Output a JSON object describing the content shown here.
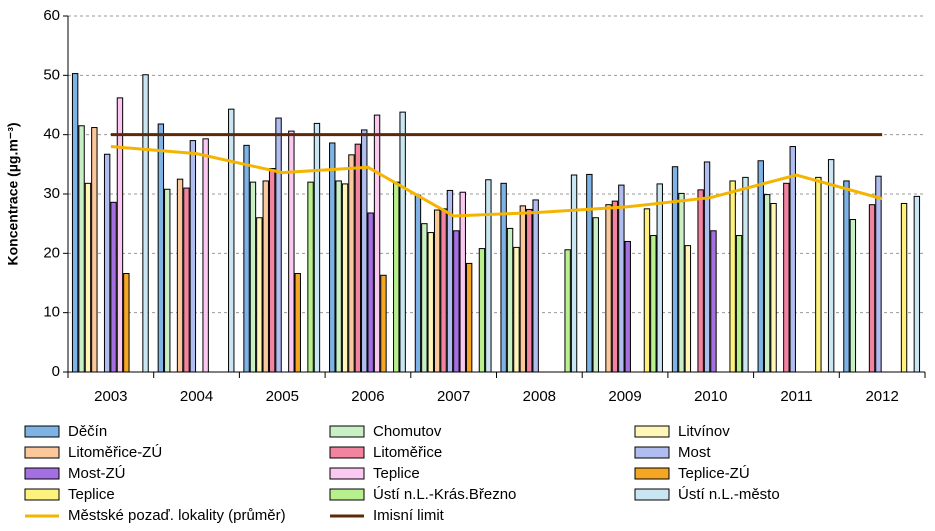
{
  "chart_data": {
    "type": "bar",
    "y_label": "Koncentrace (µg.m⁻³)",
    "categories": [
      "2003",
      "2004",
      "2005",
      "2006",
      "2007",
      "2008",
      "2009",
      "2010",
      "2011",
      "2012"
    ],
    "ylim": [
      0,
      60
    ],
    "yticks": [
      0,
      10,
      20,
      30,
      40,
      50,
      60
    ],
    "grid": true,
    "series": [
      {
        "name": "Děčín",
        "color": "#7fb2e5",
        "values": [
          50.3,
          41.8,
          38.2,
          38.6,
          29.8,
          31.8,
          33.3,
          34.6,
          35.6,
          32.2
        ]
      },
      {
        "name": "Chomutov",
        "color": "#c9f0c4",
        "values": [
          41.5,
          30.8,
          32.0,
          32.2,
          25.0,
          24.2,
          26.0,
          30.1,
          29.9,
          25.7
        ]
      },
      {
        "name": "Litvínov",
        "color": "#fff6b8",
        "values": [
          31.8,
          null,
          26.0,
          31.7,
          23.5,
          21.0,
          null,
          21.3,
          28.4,
          null
        ]
      },
      {
        "name": "Litoměřice-ZÚ",
        "color": "#fbc89c",
        "values": [
          41.2,
          32.5,
          32.2,
          36.6,
          27.3,
          28.0,
          28.2,
          null,
          null,
          null
        ]
      },
      {
        "name": "Litoměřice",
        "color": "#f2849f",
        "values": [
          null,
          31.0,
          34.3,
          38.4,
          27.5,
          27.4,
          28.8,
          30.7,
          31.8,
          28.2
        ]
      },
      {
        "name": "Most",
        "color": "#b0bdf0",
        "values": [
          36.7,
          39.0,
          42.8,
          40.8,
          30.6,
          29.0,
          31.5,
          35.4,
          38.0,
          33.0
        ]
      },
      {
        "name": "Most-ZÚ",
        "color": "#a46fe0",
        "values": [
          28.6,
          null,
          null,
          26.8,
          23.8,
          null,
          22.0,
          23.8,
          null,
          null
        ]
      },
      {
        "name": "Teplice",
        "color": "#fbc8f2",
        "values": [
          46.2,
          39.3,
          40.6,
          43.3,
          30.3,
          null,
          null,
          null,
          null,
          null
        ]
      },
      {
        "name": "Teplice-ZÚ",
        "color": "#f5a623",
        "values": [
          16.6,
          null,
          16.6,
          16.3,
          18.3,
          null,
          null,
          null,
          null,
          null
        ]
      },
      {
        "name": "Teplice",
        "color": "#fdf27e",
        "values": [
          null,
          null,
          null,
          null,
          null,
          null,
          27.5,
          32.2,
          32.8,
          28.4
        ]
      },
      {
        "name": "Ústí n.L.-Krás.Březno",
        "color": "#b8f08e",
        "values": [
          null,
          null,
          32.0,
          32.0,
          20.8,
          20.6,
          23.0,
          23.0,
          null,
          null
        ]
      },
      {
        "name": "Ústí n.L.-město",
        "color": "#cbe6f3",
        "values": [
          50.1,
          44.3,
          41.9,
          43.8,
          32.4,
          33.2,
          31.7,
          32.8,
          35.8,
          29.6
        ]
      },
      {
        "name": "Městské pozaď. lokality (průměr)",
        "type": "line",
        "color": "#f5b400",
        "values": [
          38.0,
          36.8,
          33.6,
          34.5,
          26.3,
          26.9,
          27.8,
          29.4,
          33.2,
          29.2
        ]
      },
      {
        "name": "Imisní limit",
        "type": "line",
        "color": "#5c2a0a",
        "values": [
          40,
          40,
          40,
          40,
          40,
          40,
          40,
          40,
          40,
          40
        ]
      }
    ]
  }
}
